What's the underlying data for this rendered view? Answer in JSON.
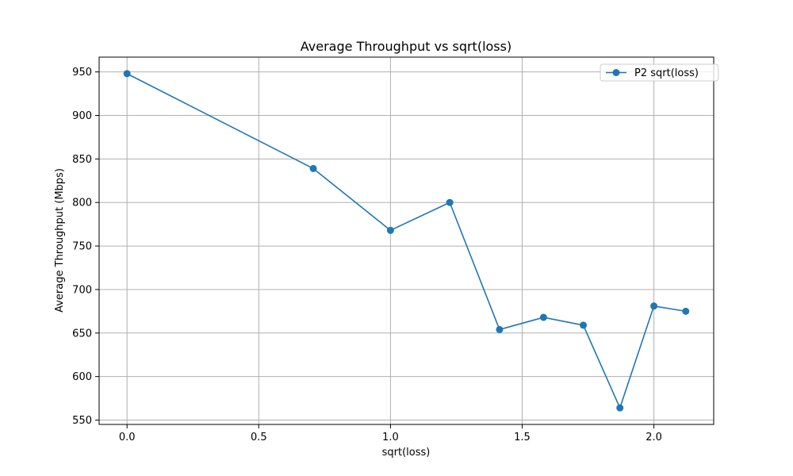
{
  "chart_data": {
    "type": "line",
    "title": "Average Throughput vs sqrt(loss)",
    "xlabel": "sqrt(loss)",
    "ylabel": "Average Throughput (Mbps)",
    "xlim": [
      -0.106,
      2.227
    ],
    "ylim": [
      545,
      967
    ],
    "xticks": [
      0.0,
      0.5,
      1.0,
      1.5,
      2.0
    ],
    "xtick_labels": [
      "0.0",
      "0.5",
      "1.0",
      "1.5",
      "2.0"
    ],
    "yticks": [
      550,
      600,
      650,
      700,
      750,
      800,
      850,
      900,
      950
    ],
    "ytick_labels": [
      "550",
      "600",
      "650",
      "700",
      "750",
      "800",
      "850",
      "900",
      "950"
    ],
    "grid": true,
    "legend_position": "top-right",
    "series": [
      {
        "name": "P2 sqrt(loss)",
        "color": "#1f77b4",
        "marker": "circle",
        "x": [
          0.0,
          0.707,
          1.0,
          1.225,
          1.414,
          1.581,
          1.732,
          1.871,
          2.0,
          2.121
        ],
        "y": [
          948,
          839,
          768,
          800,
          654,
          668,
          659,
          564,
          681,
          675
        ]
      }
    ]
  }
}
